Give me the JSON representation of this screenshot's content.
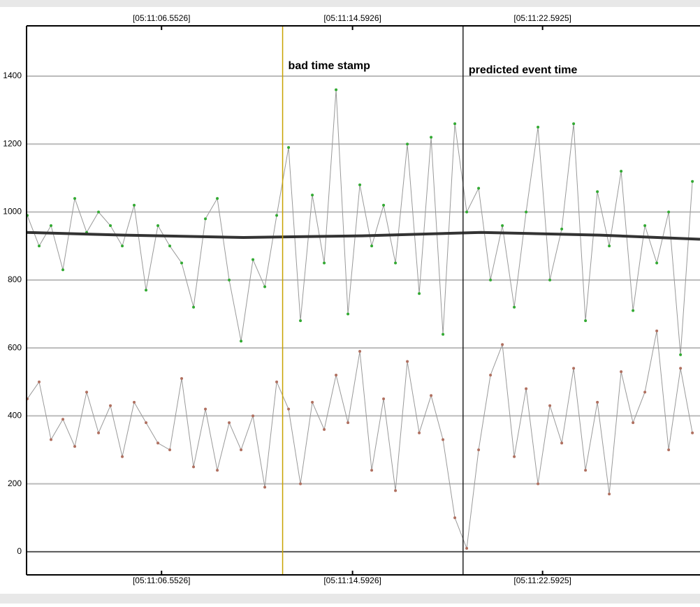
{
  "chart_data": {
    "type": "line",
    "x": [
      0.9,
      1.4,
      1.9,
      2.4,
      2.9,
      3.4,
      3.9,
      4.4,
      4.9,
      5.4,
      5.9,
      6.4,
      6.9,
      7.4,
      7.9,
      8.4,
      8.9,
      9.4,
      9.9,
      10.4,
      10.9,
      11.4,
      11.9,
      12.4,
      12.9,
      13.4,
      13.9,
      14.4,
      14.9,
      15.4,
      15.9,
      16.4,
      16.9,
      17.4,
      17.9,
      18.4,
      18.9,
      19.4,
      19.9,
      20.4,
      20.9,
      21.4,
      21.9,
      22.4,
      22.9,
      23.4,
      23.9,
      24.4,
      24.9,
      25.4,
      25.9,
      26.4,
      26.9,
      27.4,
      27.9,
      28.4,
      28.9
    ],
    "series": [
      {
        "color": "#33aa33",
        "line_color": "#999999",
        "values": [
          990,
          900,
          960,
          830,
          1040,
          940,
          1000,
          960,
          900,
          1020,
          770,
          960,
          900,
          850,
          720,
          980,
          1040,
          800,
          620,
          860,
          780,
          990,
          1190,
          680,
          1050,
          850,
          1360,
          700,
          1080,
          900,
          1020,
          850,
          1200,
          760,
          1220,
          640,
          1260,
          1000,
          1070,
          800,
          960,
          720,
          1000,
          1250,
          800,
          950,
          1260,
          680,
          1060,
          900,
          1120,
          710,
          960,
          850,
          1000,
          580,
          1090
        ]
      },
      {
        "color": "#b07060",
        "line_color": "#999999",
        "values": [
          450,
          500,
          330,
          390,
          310,
          470,
          350,
          430,
          280,
          440,
          380,
          320,
          300,
          510,
          250,
          420,
          240,
          380,
          300,
          400,
          190,
          500,
          420,
          200,
          440,
          360,
          520,
          380,
          590,
          240,
          450,
          180,
          560,
          350,
          460,
          330,
          100,
          10,
          300,
          520,
          610,
          280,
          480,
          200,
          430,
          320,
          540,
          240,
          440,
          170,
          530,
          380,
          470,
          650,
          300,
          540,
          350
        ]
      },
      {
        "color": "#333333",
        "line_color": "#333333",
        "thick": true,
        "x": [
          0.87,
          5,
          10,
          15,
          20,
          25,
          29.22
        ],
        "values": [
          940,
          932,
          925,
          930,
          940,
          932,
          920
        ]
      }
    ],
    "xlim": [
      0.87,
      29.22
    ],
    "xticks": [
      {
        "value": 6.5526,
        "label": "[05:11:06.5526]"
      },
      {
        "value": 14.5926,
        "label": "[05:11:14.5926]"
      },
      {
        "value": 22.5925,
        "label": "[05:11:22.5925]"
      }
    ],
    "ylim": [
      -68,
      1548
    ],
    "yticks": [
      0,
      200,
      400,
      600,
      800,
      1000,
      1200,
      1400
    ],
    "grid": true,
    "annotations": [
      {
        "text": "bad time stamp",
        "x": 11.65,
        "color": "#c8a200"
      },
      {
        "text": "predicted event time",
        "x": 19.245,
        "color": "#222222"
      }
    ]
  }
}
